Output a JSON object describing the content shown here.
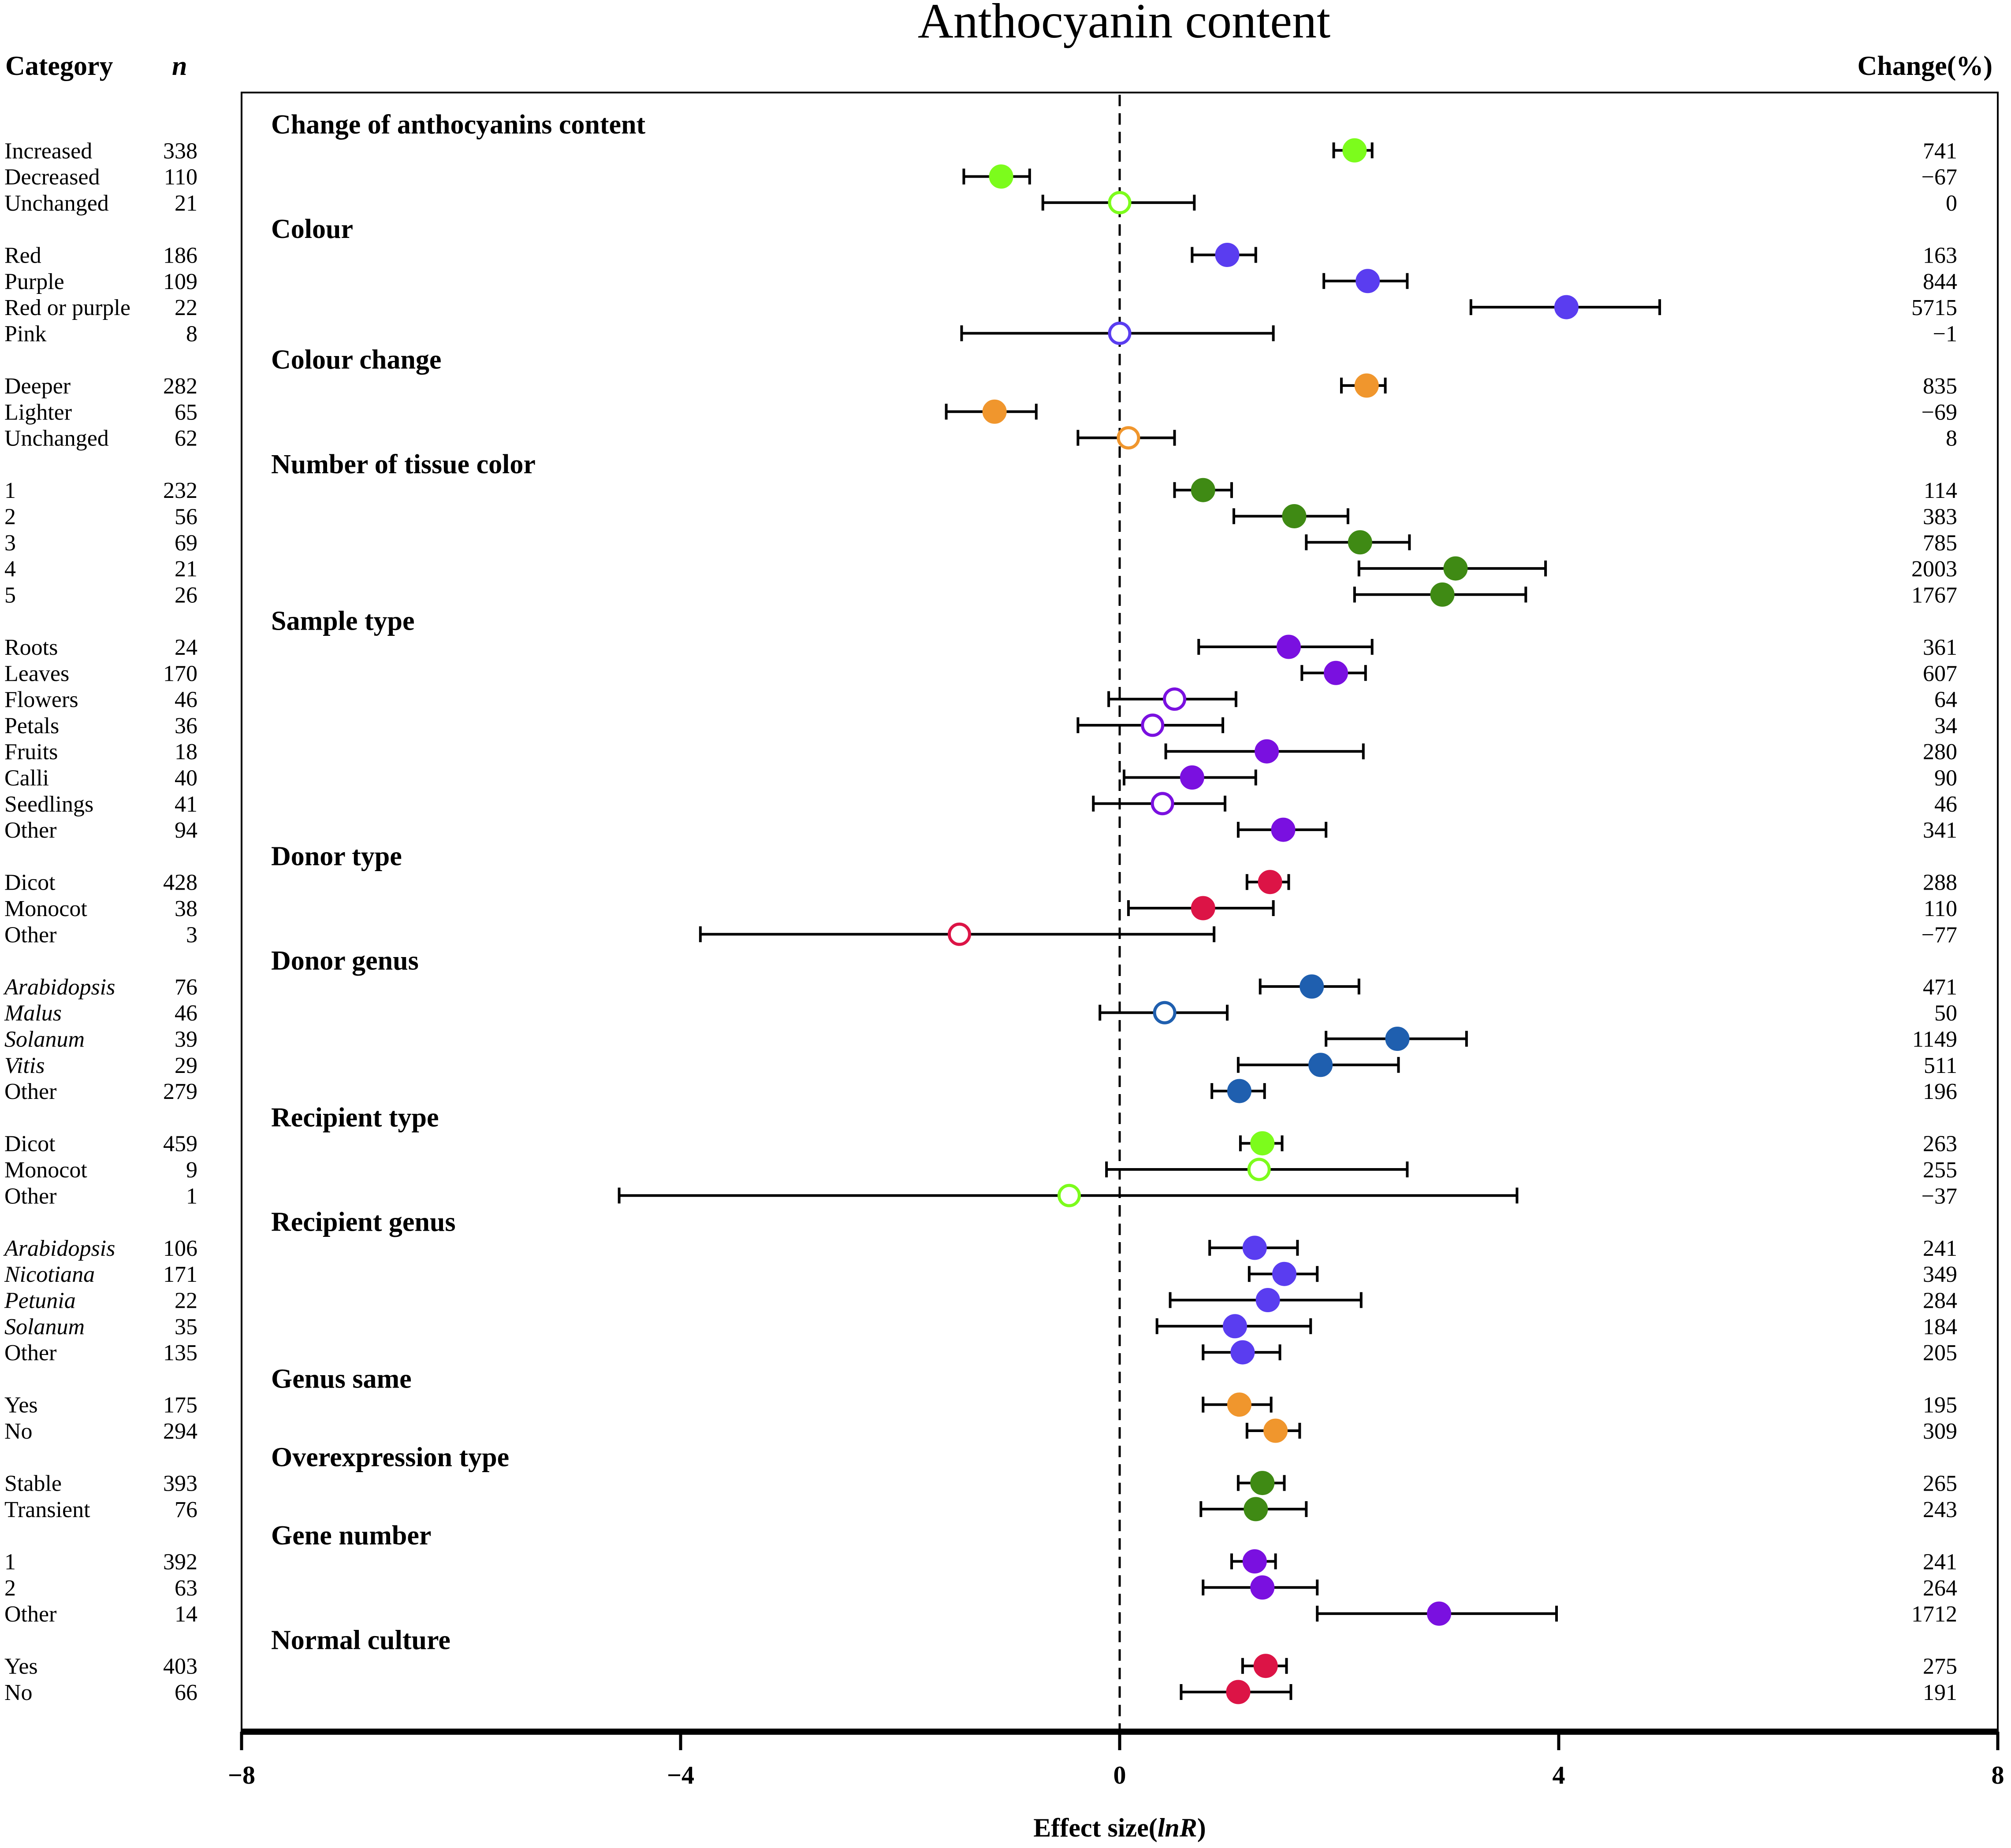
{
  "chart_data": {
    "type": "forest",
    "title": "Anthocyanin content",
    "col_category": "Category",
    "col_n": "n",
    "col_change": "Change(%)",
    "xlabel_prefix": "Effect size(",
    "xlabel_italic": "lnR",
    "xlabel_suffix": ")",
    "xlim": [
      -8,
      8
    ],
    "xticks": [
      -8,
      -4,
      0,
      4,
      8
    ],
    "xtick_labels": [
      "−8",
      "−4",
      "0",
      "4",
      "8"
    ],
    "reference_line": 0,
    "groups": [
      {
        "name": "Change of anthocyanins content",
        "color": "#7CFC1C",
        "rows": [
          {
            "label": "Increased",
            "n": "338",
            "est": 2.14,
            "lo": 1.95,
            "hi": 2.3,
            "change": "741",
            "filled": true
          },
          {
            "label": "Decreased",
            "n": "110",
            "est": -1.08,
            "lo": -1.42,
            "hi": -0.82,
            "change": "−67",
            "filled": true
          },
          {
            "label": "Unchanged",
            "n": "21",
            "est": 0.0,
            "lo": -0.7,
            "hi": 0.68,
            "change": "0",
            "filled": false
          }
        ]
      },
      {
        "name": "Colour",
        "color": "#5A3DF0",
        "rows": [
          {
            "label": "Red",
            "n": "186",
            "est": 0.98,
            "lo": 0.66,
            "hi": 1.24,
            "change": "163",
            "filled": true
          },
          {
            "label": "Purple",
            "n": "109",
            "est": 2.26,
            "lo": 1.86,
            "hi": 2.62,
            "change": "844",
            "filled": true
          },
          {
            "label": "Red or purple",
            "n": "22",
            "est": 4.07,
            "lo": 3.2,
            "hi": 4.92,
            "change": "5715",
            "filled": true
          },
          {
            "label": "Pink",
            "n": "8",
            "est": 0.0,
            "lo": -1.44,
            "hi": 1.4,
            "change": "−1",
            "filled": false
          }
        ]
      },
      {
        "name": "Colour change",
        "color": "#F0962D",
        "rows": [
          {
            "label": "Deeper",
            "n": "282",
            "est": 2.25,
            "lo": 2.02,
            "hi": 2.42,
            "change": "835",
            "filled": true
          },
          {
            "label": "Lighter",
            "n": "65",
            "est": -1.14,
            "lo": -1.58,
            "hi": -0.76,
            "change": "−69",
            "filled": true
          },
          {
            "label": "Unchanged",
            "n": "62",
            "est": 0.08,
            "lo": -0.38,
            "hi": 0.5,
            "change": "8",
            "filled": false
          }
        ]
      },
      {
        "name": "Number of tissue color",
        "color": "#3F8A14",
        "rows": [
          {
            "label": "1",
            "n": "232",
            "est": 0.76,
            "lo": 0.5,
            "hi": 1.02,
            "change": "114",
            "filled": true
          },
          {
            "label": "2",
            "n": "56",
            "est": 1.59,
            "lo": 1.04,
            "hi": 2.08,
            "change": "383",
            "filled": true
          },
          {
            "label": "3",
            "n": "69",
            "est": 2.19,
            "lo": 1.7,
            "hi": 2.64,
            "change": "785",
            "filled": true
          },
          {
            "label": "4",
            "n": "21",
            "est": 3.06,
            "lo": 2.18,
            "hi": 3.88,
            "change": "2003",
            "filled": true
          },
          {
            "label": "5",
            "n": "26",
            "est": 2.94,
            "lo": 2.14,
            "hi": 3.7,
            "change": "1767",
            "filled": true
          }
        ]
      },
      {
        "name": "Sample type",
        "color": "#7A10E0",
        "rows": [
          {
            "label": "Roots",
            "n": "24",
            "est": 1.54,
            "lo": 0.72,
            "hi": 2.3,
            "change": "361",
            "filled": true
          },
          {
            "label": "Leaves",
            "n": "170",
            "est": 1.97,
            "lo": 1.66,
            "hi": 2.24,
            "change": "607",
            "filled": true
          },
          {
            "label": "Flowers",
            "n": "46",
            "est": 0.5,
            "lo": -0.1,
            "hi": 1.06,
            "change": "64",
            "filled": false
          },
          {
            "label": "Petals",
            "n": "36",
            "est": 0.3,
            "lo": -0.38,
            "hi": 0.94,
            "change": "34",
            "filled": false
          },
          {
            "label": "Fruits",
            "n": "18",
            "est": 1.34,
            "lo": 0.42,
            "hi": 2.22,
            "change": "280",
            "filled": true
          },
          {
            "label": "Calli",
            "n": "40",
            "est": 0.66,
            "lo": 0.04,
            "hi": 1.24,
            "change": "90",
            "filled": true
          },
          {
            "label": "Seedlings",
            "n": "41",
            "est": 0.39,
            "lo": -0.24,
            "hi": 0.96,
            "change": "46",
            "filled": false
          },
          {
            "label": "Other",
            "n": "94",
            "est": 1.49,
            "lo": 1.08,
            "hi": 1.88,
            "change": "341",
            "filled": true
          }
        ]
      },
      {
        "name": "Donor type",
        "color": "#DC1446",
        "rows": [
          {
            "label": "Dicot",
            "n": "428",
            "est": 1.37,
            "lo": 1.16,
            "hi": 1.54,
            "change": "288",
            "filled": true
          },
          {
            "label": "Monocot",
            "n": "38",
            "est": 0.76,
            "lo": 0.08,
            "hi": 1.4,
            "change": "110",
            "filled": true
          },
          {
            "label": "Other",
            "n": "3",
            "est": -1.46,
            "lo": -3.82,
            "hi": 0.86,
            "change": "−77",
            "filled": false
          }
        ]
      },
      {
        "name": "Donor genus",
        "color": "#1F5FAF",
        "rows": [
          {
            "label": "Arabidopsis",
            "italic": true,
            "n": "76",
            "est": 1.75,
            "lo": 1.28,
            "hi": 2.18,
            "change": "471",
            "filled": true
          },
          {
            "label": "Malus",
            "italic": true,
            "n": "46",
            "est": 0.41,
            "lo": -0.18,
            "hi": 0.98,
            "change": "50",
            "filled": false
          },
          {
            "label": "Solanum",
            "italic": true,
            "n": "39",
            "est": 2.53,
            "lo": 1.88,
            "hi": 3.16,
            "change": "1149",
            "filled": true
          },
          {
            "label": "Vitis",
            "italic": true,
            "n": "29",
            "est": 1.83,
            "lo": 1.08,
            "hi": 2.54,
            "change": "511",
            "filled": true
          },
          {
            "label": "Other",
            "n": "279",
            "est": 1.09,
            "lo": 0.84,
            "hi": 1.32,
            "change": "196",
            "filled": true
          }
        ]
      },
      {
        "name": "Recipient type",
        "color": "#7CFC1C",
        "rows": [
          {
            "label": "Dicot",
            "n": "459",
            "est": 1.3,
            "lo": 1.1,
            "hi": 1.48,
            "change": "263",
            "filled": true
          },
          {
            "label": "Monocot",
            "n": "9",
            "est": 1.27,
            "lo": -0.12,
            "hi": 2.62,
            "change": "255",
            "filled": false
          },
          {
            "label": "Other",
            "n": "1",
            "est": -0.46,
            "lo": -4.56,
            "hi": 3.62,
            "change": "−37",
            "filled": false
          }
        ]
      },
      {
        "name": "Recipient genus",
        "color": "#5A3DF0",
        "rows": [
          {
            "label": "Arabidopsis",
            "italic": true,
            "n": "106",
            "est": 1.23,
            "lo": 0.82,
            "hi": 1.62,
            "change": "241",
            "filled": true
          },
          {
            "label": "Nicotiana",
            "italic": true,
            "n": "171",
            "est": 1.5,
            "lo": 1.18,
            "hi": 1.8,
            "change": "349",
            "filled": true
          },
          {
            "label": "Petunia",
            "italic": true,
            "n": "22",
            "est": 1.35,
            "lo": 0.46,
            "hi": 2.2,
            "change": "284",
            "filled": true
          },
          {
            "label": "Solanum",
            "italic": true,
            "n": "35",
            "est": 1.05,
            "lo": 0.34,
            "hi": 1.74,
            "change": "184",
            "filled": true
          },
          {
            "label": "Other",
            "n": "135",
            "est": 1.12,
            "lo": 0.76,
            "hi": 1.46,
            "change": "205",
            "filled": true
          }
        ]
      },
      {
        "name": "Genus same",
        "color": "#F0962D",
        "rows": [
          {
            "label": "Yes",
            "n": "175",
            "est": 1.09,
            "lo": 0.76,
            "hi": 1.38,
            "change": "195",
            "filled": true
          },
          {
            "label": "No",
            "n": "294",
            "est": 1.42,
            "lo": 1.16,
            "hi": 1.64,
            "change": "309",
            "filled": true
          }
        ]
      },
      {
        "name": "Overexpression type",
        "color": "#3F8A14",
        "rows": [
          {
            "label": "Stable",
            "n": "393",
            "est": 1.3,
            "lo": 1.08,
            "hi": 1.5,
            "change": "265",
            "filled": true
          },
          {
            "label": "Transient",
            "n": "76",
            "est": 1.24,
            "lo": 0.74,
            "hi": 1.7,
            "change": "243",
            "filled": true
          }
        ]
      },
      {
        "name": "Gene number",
        "color": "#7A10E0",
        "rows": [
          {
            "label": "1",
            "n": "392",
            "est": 1.23,
            "lo": 1.02,
            "hi": 1.42,
            "change": "241",
            "filled": true
          },
          {
            "label": "2",
            "n": "63",
            "est": 1.3,
            "lo": 0.76,
            "hi": 1.8,
            "change": "264",
            "filled": true
          },
          {
            "label": "Other",
            "n": "14",
            "est": 2.91,
            "lo": 1.8,
            "hi": 3.98,
            "change": "1712",
            "filled": true
          }
        ]
      },
      {
        "name": "Normal culture",
        "color": "#DC1446",
        "rows": [
          {
            "label": "Yes",
            "n": "403",
            "est": 1.33,
            "lo": 1.12,
            "hi": 1.52,
            "change": "275",
            "filled": true
          },
          {
            "label": "No",
            "n": "66",
            "est": 1.08,
            "lo": 0.56,
            "hi": 1.56,
            "change": "191",
            "filled": true
          }
        ]
      }
    ]
  }
}
